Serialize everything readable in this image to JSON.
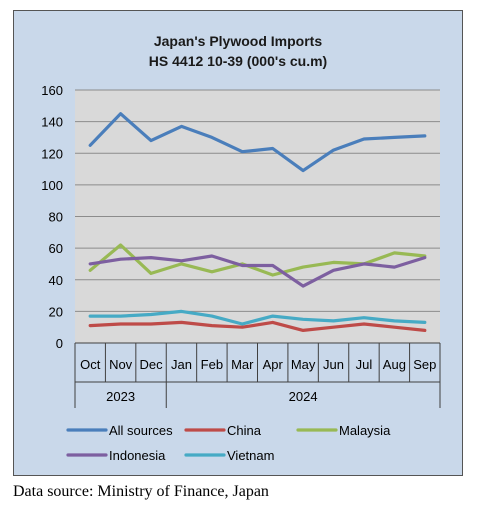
{
  "chart_data": {
    "type": "line",
    "title": "Japan's Plywood Imports",
    "subtitle": "HS 4412 10-39  (000's cu.m)",
    "xlabel": "",
    "ylabel": "",
    "categories": [
      "Oct",
      "Nov",
      "Dec",
      "Jan",
      "Feb",
      "Mar",
      "Apr",
      "May",
      "Jun",
      "Jul",
      "Aug",
      "Sep"
    ],
    "year_groups": [
      {
        "label": "2023",
        "span": 3
      },
      {
        "label": "2024",
        "span": 9
      }
    ],
    "ylim": [
      0,
      160
    ],
    "yticks": [
      "0",
      "20",
      "40",
      "60",
      "80",
      "100",
      "120",
      "140",
      "160"
    ],
    "grid": true,
    "legend_position": "bottom",
    "series": [
      {
        "name": "All sources",
        "color": "#4a7ebb",
        "values": [
          125,
          145,
          128,
          137,
          130,
          121,
          123,
          109,
          122,
          129,
          130,
          131
        ]
      },
      {
        "name": "China",
        "color": "#be4b48",
        "values": [
          11,
          12,
          12,
          13,
          11,
          10,
          13,
          8,
          10,
          12,
          10,
          8
        ]
      },
      {
        "name": "Malaysia",
        "color": "#98b954",
        "values": [
          46,
          62,
          44,
          50,
          45,
          50,
          43,
          48,
          51,
          50,
          57,
          55
        ]
      },
      {
        "name": "Indonesia",
        "color": "#7d5fa0",
        "values": [
          50,
          53,
          54,
          52,
          55,
          49,
          49,
          36,
          46,
          50,
          48,
          54
        ]
      },
      {
        "name": "Vietnam",
        "color": "#46aac5",
        "values": [
          17,
          17,
          18,
          20,
          17,
          12,
          17,
          15,
          14,
          16,
          14,
          13
        ]
      }
    ]
  },
  "footer": {
    "source": "Data source: Ministry of Finance, Japan"
  }
}
